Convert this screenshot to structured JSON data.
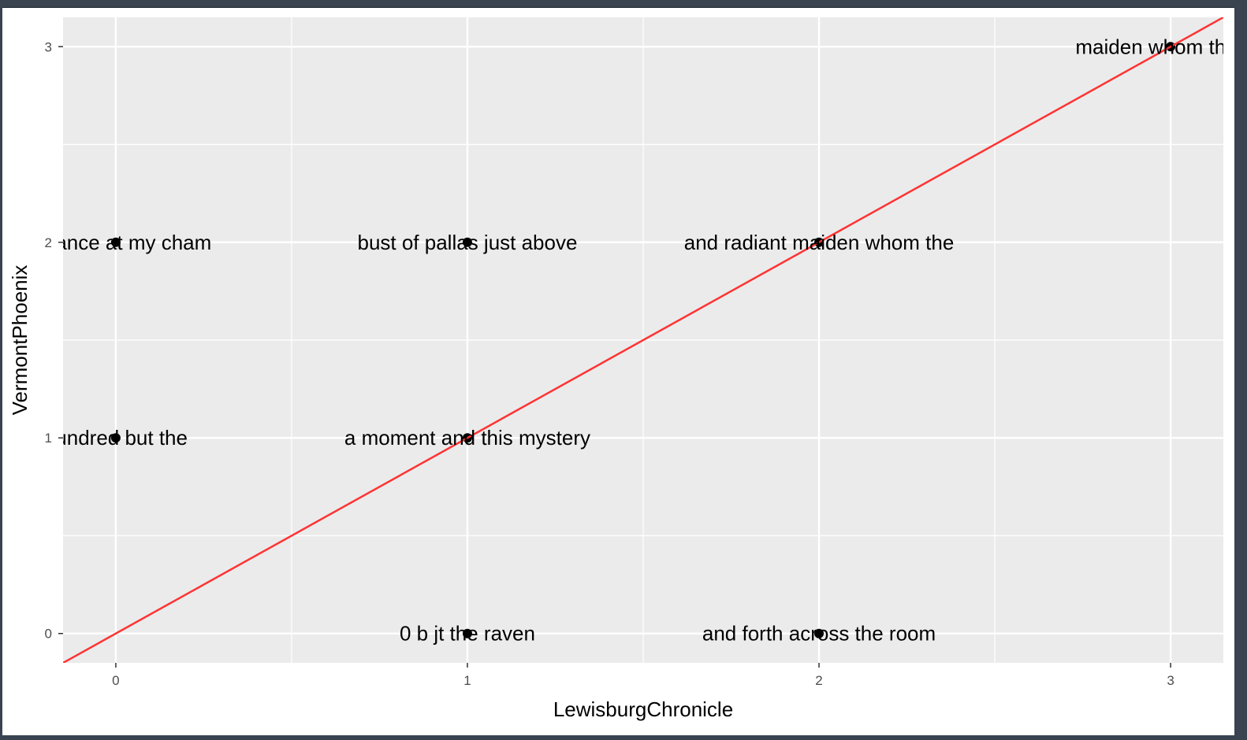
{
  "chart_data": {
    "type": "scatter",
    "title": "",
    "xlabel": "LewisburgChronicle",
    "ylabel": "VermontPhoenix",
    "xlim": [
      -0.15,
      3.15
    ],
    "ylim": [
      -0.15,
      3.15
    ],
    "x_ticks": [
      "0",
      "1",
      "2",
      "3"
    ],
    "y_ticks": [
      "0",
      "1",
      "2",
      "3"
    ],
    "grid": true,
    "panel_background": "#EBEBEB",
    "grid_color": "#FFFFFF",
    "point_color": "#000000",
    "label_color": "#000000",
    "reference_line": {
      "slope": 1,
      "intercept": 0,
      "color": "#FF3333"
    },
    "points": [
      {
        "x": 0,
        "y": 2,
        "label": "entrance at my cham"
      },
      {
        "x": 1,
        "y": 2,
        "label": "bust of pallas just above"
      },
      {
        "x": 2,
        "y": 2,
        "label": "and radiant maiden whom the"
      },
      {
        "x": 3,
        "y": 3,
        "label": "maiden whom the an"
      },
      {
        "x": 0,
        "y": 1,
        "label": "hundred but the"
      },
      {
        "x": 1,
        "y": 1,
        "label": "a moment and this mystery"
      },
      {
        "x": 1,
        "y": 0,
        "label": "0 b jt the raven"
      },
      {
        "x": 2,
        "y": 0,
        "label": "and forth across the room"
      }
    ]
  }
}
